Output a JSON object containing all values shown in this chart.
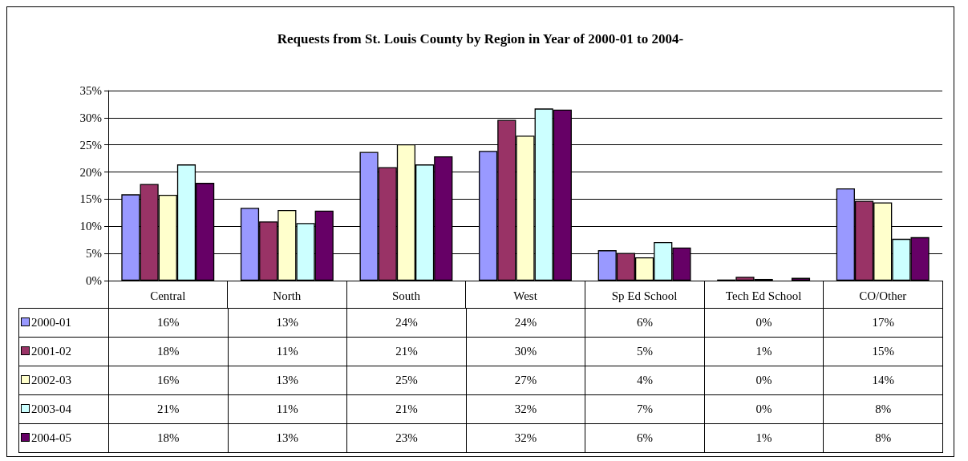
{
  "chart_data": {
    "type": "bar",
    "title": "Requests from St. Louis County by Region in Year of 2000-01 to 2004-",
    "categories": [
      "Central",
      "North",
      "South",
      "West",
      "Sp Ed School",
      "Tech Ed School",
      "CO/Other"
    ],
    "series": [
      {
        "name": "2000-01",
        "color": "#9999ff",
        "values": [
          15.9,
          13.4,
          23.7,
          23.9,
          5.6,
          0.2,
          17.0
        ],
        "value_labels": [
          "16%",
          "13%",
          "24%",
          "24%",
          "6%",
          "0%",
          "17%"
        ]
      },
      {
        "name": "2001-02",
        "color": "#993366",
        "values": [
          17.8,
          10.9,
          20.9,
          29.6,
          5.1,
          0.7,
          14.7
        ],
        "value_labels": [
          "18%",
          "11%",
          "21%",
          "30%",
          "5%",
          "1%",
          "15%"
        ]
      },
      {
        "name": "2002-03",
        "color": "#ffffcc",
        "values": [
          15.8,
          13.0,
          25.1,
          26.7,
          4.3,
          0.3,
          14.4
        ],
        "value_labels": [
          "16%",
          "13%",
          "25%",
          "27%",
          "4%",
          "0%",
          "14%"
        ]
      },
      {
        "name": "2003-04",
        "color": "#ccffff",
        "values": [
          21.4,
          10.6,
          21.4,
          31.7,
          7.1,
          0.0,
          7.7
        ],
        "value_labels": [
          "21%",
          "11%",
          "21%",
          "32%",
          "7%",
          "0%",
          "8%"
        ]
      },
      {
        "name": "2004-05",
        "color": "#660066",
        "values": [
          18.0,
          12.9,
          22.9,
          31.5,
          6.1,
          0.5,
          8.0
        ],
        "value_labels": [
          "18%",
          "13%",
          "23%",
          "32%",
          "6%",
          "1%",
          "8%"
        ]
      }
    ],
    "ylim": [
      0,
      35
    ],
    "yticks": [
      {
        "value": 0,
        "label": "0%"
      },
      {
        "value": 5,
        "label": "5%"
      },
      {
        "value": 10,
        "label": "10%"
      },
      {
        "value": 15,
        "label": "15%"
      },
      {
        "value": 20,
        "label": "20%"
      },
      {
        "value": 25,
        "label": "25%"
      },
      {
        "value": 30,
        "label": "30%"
      },
      {
        "value": 35,
        "label": "35%"
      }
    ],
    "grid": "y",
    "legend": "bottom left"
  }
}
